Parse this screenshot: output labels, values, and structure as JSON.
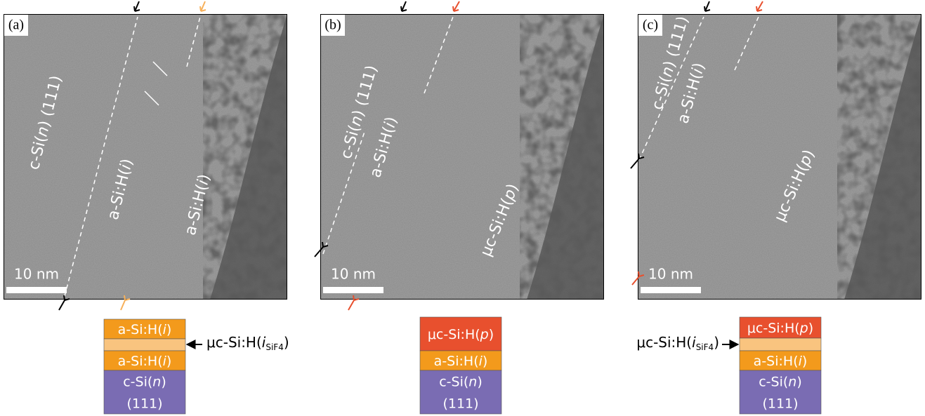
{
  "panels": [
    {
      "tag": "(a)",
      "scale_bar": "10 nm",
      "image_labels": [
        {
          "text": [
            "c-Si(",
            {
              "i": "n"
            },
            ") (111)"
          ]
        },
        {
          "text": [
            "a-Si:H(",
            {
              "i": "i"
            },
            ")"
          ]
        },
        {
          "text": [
            "a-Si:H(",
            {
              "i": "i"
            },
            ")"
          ]
        }
      ],
      "stack": {
        "layers": [
          {
            "color": "#f39a1c",
            "lines": [
              [
                "a-Si:H(",
                {
                  "i": "i"
                },
                ")"
              ]
            ]
          },
          {
            "color": "#f9c47f"
          },
          {
            "color": "#f39a1c",
            "lines": [
              [
                "a-Si:H(",
                {
                  "i": "i"
                },
                ")"
              ]
            ]
          },
          {
            "color": "#7a6cb3",
            "lines": [
              [
                "c-Si(",
                {
                  "i": "n"
                },
                ")"
              ],
              [
                "(111)"
              ]
            ]
          }
        ],
        "callout": [
          "μc-Si:H(",
          {
            "i": "i"
          },
          {
            "sub": "SiF4"
          },
          ")"
        ]
      }
    },
    {
      "tag": "(b)",
      "scale_bar": "10 nm",
      "image_labels": [
        {
          "text": [
            "c-Si(",
            {
              "i": "n"
            },
            ") (111)"
          ]
        },
        {
          "text": [
            "a-Si:H(",
            {
              "i": "i"
            },
            ")"
          ]
        },
        {
          "text": [
            "μc-Si:H(",
            {
              "i": "p"
            },
            ")"
          ]
        }
      ],
      "stack": {
        "layers": [
          {
            "color": "#e8502e",
            "lines": [
              [
                "μc-Si:H(",
                {
                  "i": "p"
                },
                ")"
              ]
            ]
          },
          {
            "color": "#f39a1c",
            "lines": [
              [
                "a-Si:H(",
                {
                  "i": "i"
                },
                ")"
              ]
            ]
          },
          {
            "color": "#7a6cb3",
            "lines": [
              [
                "c-Si(",
                {
                  "i": "n"
                },
                ")"
              ],
              [
                "(111)"
              ]
            ]
          }
        ]
      }
    },
    {
      "tag": "(c)",
      "scale_bar": "10 nm",
      "image_labels": [
        {
          "text": [
            "c-Si(",
            {
              "i": "n"
            },
            ") (111)"
          ]
        },
        {
          "text": [
            "a-Si:H(",
            {
              "i": "i"
            },
            ")"
          ]
        },
        {
          "text": [
            "μc-Si:H(",
            {
              "i": "p"
            },
            ")"
          ]
        }
      ],
      "stack": {
        "layers": [
          {
            "color": "#e8502e",
            "lines": [
              [
                "μc-Si:H(",
                {
                  "i": "p"
                },
                ")"
              ]
            ]
          },
          {
            "color": "#f9c47f"
          },
          {
            "color": "#f39a1c",
            "lines": [
              [
                "a-Si:H(",
                {
                  "i": "i"
                },
                ")"
              ]
            ]
          },
          {
            "color": "#7a6cb3",
            "lines": [
              [
                "c-Si(",
                {
                  "i": "n"
                },
                ")"
              ],
              [
                "(111)"
              ]
            ]
          }
        ],
        "callout": [
          "μc-Si:H(",
          {
            "i": "i"
          },
          {
            "sub": "SiF4"
          },
          ")"
        ]
      }
    }
  ]
}
